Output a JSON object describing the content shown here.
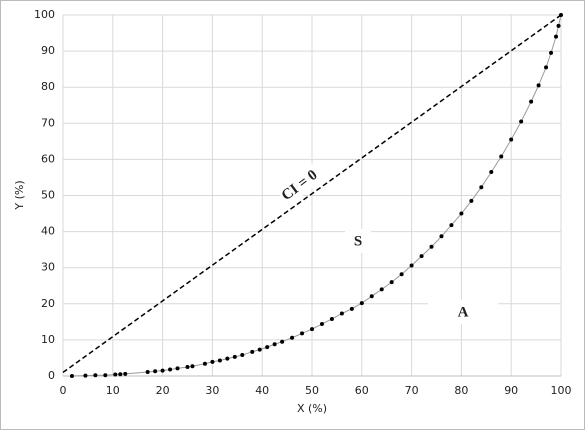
{
  "chart_data": {
    "type": "scatter",
    "xlabel": "X (%)",
    "ylabel": "Y (%)",
    "xlim": [
      0,
      100
    ],
    "ylim": [
      0,
      100
    ],
    "xticks": [
      0,
      10,
      20,
      30,
      40,
      50,
      60,
      70,
      80,
      90,
      100
    ],
    "yticks": [
      0,
      10,
      20,
      30,
      40,
      50,
      60,
      70,
      80,
      90,
      100
    ],
    "grid": true,
    "annotations": [
      "CI = 0",
      "S",
      "A"
    ],
    "series": [
      {
        "color": "#000000",
        "line_color": "#9a9a9a",
        "x": [
          1.8,
          4.5,
          6.5,
          8.5,
          10.5,
          11.5,
          12.5,
          17,
          18.5,
          20,
          21.5,
          23,
          25,
          26,
          28.5,
          30,
          31.5,
          33,
          34.5,
          36,
          38,
          39.5,
          41,
          42.5,
          44,
          46,
          48,
          50,
          52,
          54,
          56,
          58,
          60,
          62,
          64,
          66,
          68,
          70,
          72,
          74,
          76,
          78,
          80,
          82,
          84,
          86,
          88,
          90,
          92,
          94,
          95.5,
          97,
          98,
          99,
          99.5,
          100
        ],
        "y": [
          0,
          0.1,
          0.2,
          0.2,
          0.4,
          0.5,
          0.6,
          1.1,
          1.3,
          1.5,
          1.8,
          2.1,
          2.5,
          2.7,
          3.4,
          3.9,
          4.3,
          4.8,
          5.3,
          5.8,
          6.7,
          7.3,
          8.0,
          8.8,
          9.5,
          10.6,
          11.8,
          13,
          14.4,
          15.8,
          17.3,
          18.6,
          20.2,
          22.1,
          24,
          26,
          28.2,
          30.6,
          33.2,
          35.8,
          38.7,
          41.8,
          45,
          48.5,
          52.3,
          56.5,
          60.8,
          65.5,
          70.5,
          76,
          80.5,
          85.5,
          89.5,
          94,
          97,
          100
        ]
      }
    ],
    "reference_line": {
      "x": [
        0,
        100
      ],
      "y": [
        1,
        100
      ],
      "color": "#000000",
      "dashed": true
    }
  }
}
